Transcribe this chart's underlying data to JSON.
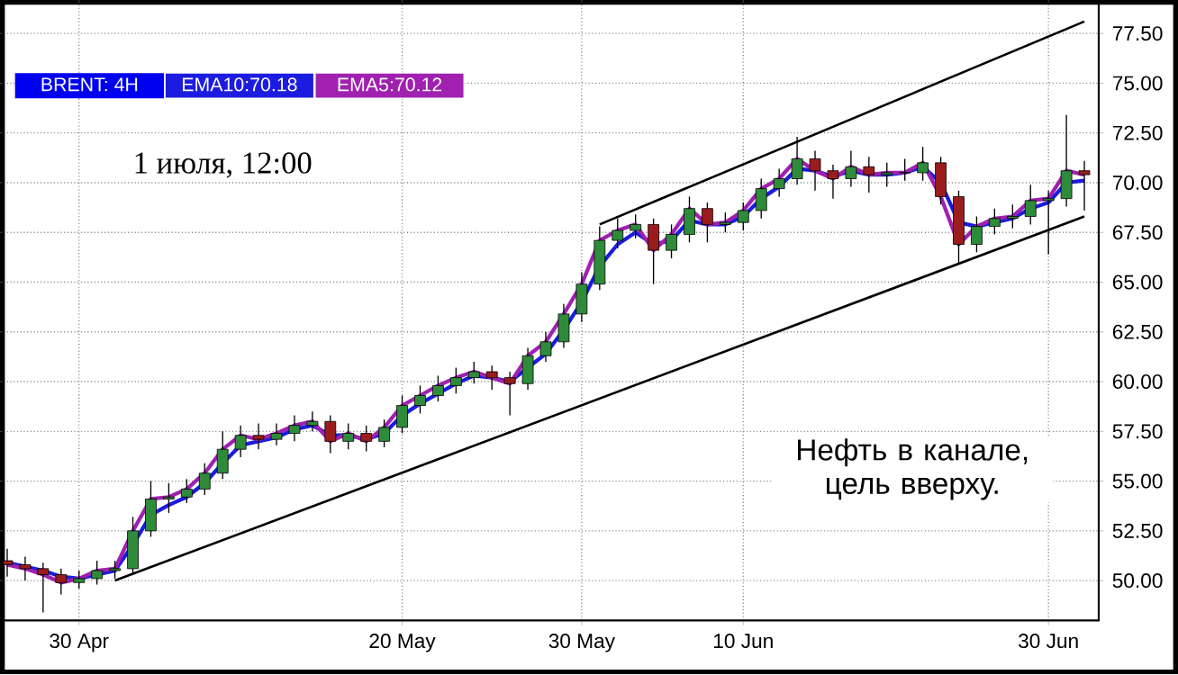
{
  "chart_data": {
    "type": "candlestick",
    "title": "BRENT: 4H",
    "categories": [
      null,
      null,
      null,
      null,
      "30 Apr",
      null,
      null,
      null,
      null,
      null,
      null,
      null,
      null,
      null,
      null,
      null,
      null,
      null,
      null,
      null,
      null,
      null,
      "20 May",
      null,
      null,
      null,
      null,
      null,
      null,
      null,
      null,
      null,
      "30 May",
      null,
      null,
      null,
      null,
      null,
      null,
      null,
      null,
      "10 Jun",
      null,
      null,
      null,
      null,
      null,
      null,
      null,
      null,
      null,
      null,
      null,
      null,
      null,
      null,
      null,
      null,
      "30 Jun",
      null,
      null
    ],
    "ohlc": [
      [
        51.0,
        51.6,
        50.2,
        50.8
      ],
      [
        50.8,
        51.2,
        50.0,
        50.6
      ],
      [
        50.6,
        50.9,
        48.4,
        50.3
      ],
      [
        50.3,
        50.6,
        49.3,
        49.9
      ],
      [
        49.9,
        50.5,
        49.6,
        50.1
      ],
      [
        50.1,
        51.0,
        49.8,
        50.5
      ],
      [
        50.5,
        51.0,
        50.1,
        50.6
      ],
      [
        50.6,
        53.2,
        50.3,
        52.5
      ],
      [
        52.5,
        55.0,
        52.2,
        54.1
      ],
      [
        54.1,
        54.9,
        53.4,
        54.2
      ],
      [
        54.2,
        55.1,
        53.9,
        54.6
      ],
      [
        54.6,
        55.9,
        54.3,
        55.4
      ],
      [
        55.4,
        57.5,
        55.1,
        56.6
      ],
      [
        56.6,
        57.8,
        56.2,
        57.3
      ],
      [
        57.3,
        57.9,
        56.6,
        57.1
      ],
      [
        57.1,
        57.9,
        56.8,
        57.4
      ],
      [
        57.4,
        58.3,
        57.0,
        57.8
      ],
      [
        57.8,
        58.5,
        57.5,
        58.0
      ],
      [
        58.0,
        58.3,
        56.4,
        57.0
      ],
      [
        57.0,
        57.9,
        56.6,
        57.4
      ],
      [
        57.4,
        57.8,
        56.5,
        57.0
      ],
      [
        57.0,
        58.1,
        56.7,
        57.7
      ],
      [
        57.7,
        59.3,
        57.4,
        58.8
      ],
      [
        58.8,
        59.8,
        58.4,
        59.3
      ],
      [
        59.3,
        60.3,
        59.0,
        59.8
      ],
      [
        59.8,
        60.7,
        59.4,
        60.2
      ],
      [
        60.2,
        61.0,
        59.9,
        60.5
      ],
      [
        60.5,
        60.8,
        59.6,
        60.2
      ],
      [
        60.2,
        60.5,
        58.3,
        59.9
      ],
      [
        59.9,
        61.7,
        59.6,
        61.3
      ],
      [
        61.3,
        62.5,
        61.0,
        62.0
      ],
      [
        62.0,
        63.9,
        61.7,
        63.4
      ],
      [
        63.4,
        65.5,
        63.0,
        64.9
      ],
      [
        64.9,
        67.8,
        64.6,
        67.1
      ],
      [
        67.1,
        68.2,
        66.7,
        67.6
      ],
      [
        67.6,
        68.4,
        67.2,
        67.9
      ],
      [
        67.9,
        68.2,
        64.9,
        66.6
      ],
      [
        66.6,
        67.9,
        66.2,
        67.4
      ],
      [
        67.4,
        69.3,
        67.0,
        68.7
      ],
      [
        68.7,
        69.0,
        67.0,
        67.9
      ],
      [
        67.9,
        68.5,
        67.5,
        68.0
      ],
      [
        68.0,
        69.0,
        67.6,
        68.6
      ],
      [
        68.6,
        70.2,
        68.2,
        69.7
      ],
      [
        69.7,
        70.7,
        69.3,
        70.2
      ],
      [
        70.2,
        72.3,
        69.9,
        71.2
      ],
      [
        71.2,
        71.6,
        69.6,
        70.6
      ],
      [
        70.6,
        70.9,
        69.2,
        70.2
      ],
      [
        70.2,
        71.6,
        69.8,
        70.8
      ],
      [
        70.8,
        71.3,
        69.5,
        70.4
      ],
      [
        70.4,
        71.0,
        69.8,
        70.5
      ],
      [
        70.5,
        71.2,
        70.1,
        70.5
      ],
      [
        70.5,
        71.8,
        70.1,
        71.0
      ],
      [
        71.0,
        71.3,
        68.9,
        69.3
      ],
      [
        69.3,
        69.6,
        65.9,
        66.9
      ],
      [
        66.9,
        68.3,
        66.5,
        67.8
      ],
      [
        67.8,
        68.7,
        67.4,
        68.2
      ],
      [
        68.2,
        68.9,
        67.7,
        68.3
      ],
      [
        68.3,
        69.9,
        67.9,
        69.1
      ],
      [
        69.1,
        69.6,
        66.4,
        69.2
      ],
      [
        69.2,
        73.4,
        68.8,
        70.6
      ],
      [
        70.6,
        71.1,
        68.6,
        70.4
      ]
    ],
    "series": [
      {
        "type": "line",
        "name": "EMA10:70.18",
        "color": "#1c1ce0",
        "values": [
          50.9,
          50.7,
          50.5,
          50.2,
          50.1,
          50.3,
          50.5,
          51.8,
          53.3,
          53.8,
          54.2,
          54.9,
          55.9,
          56.8,
          57.0,
          57.2,
          57.6,
          57.8,
          57.3,
          57.3,
          57.1,
          57.4,
          58.3,
          58.9,
          59.4,
          59.9,
          60.3,
          60.2,
          60.0,
          60.7,
          61.4,
          62.6,
          64.0,
          65.8,
          66.9,
          67.5,
          66.9,
          67.1,
          68.1,
          67.9,
          67.9,
          68.3,
          69.2,
          69.8,
          70.7,
          70.6,
          70.3,
          70.6,
          70.4,
          70.4,
          70.5,
          70.8,
          70.0,
          68.0,
          67.8,
          68.0,
          68.2,
          68.7,
          69.0,
          70.0,
          70.1
        ]
      },
      {
        "type": "line",
        "name": "EMA5:70.12",
        "color": "#a020b0",
        "values": [
          50.8,
          50.6,
          50.3,
          49.9,
          50.1,
          50.5,
          50.6,
          52.5,
          54.1,
          54.2,
          54.6,
          55.4,
          56.6,
          57.3,
          57.1,
          57.4,
          57.8,
          58.0,
          57.0,
          57.4,
          57.0,
          57.7,
          58.8,
          59.3,
          59.8,
          60.2,
          60.5,
          60.2,
          59.9,
          61.3,
          62.0,
          63.4,
          64.9,
          67.1,
          67.6,
          67.9,
          66.6,
          67.4,
          68.7,
          67.9,
          68.0,
          68.6,
          69.7,
          70.2,
          71.2,
          70.6,
          70.2,
          70.8,
          70.4,
          70.5,
          70.5,
          71.0,
          69.3,
          66.9,
          67.8,
          68.2,
          68.3,
          69.1,
          69.2,
          70.6,
          70.4
        ]
      },
      {
        "type": "line",
        "color": "#000000",
        "values": [
          null,
          null,
          null,
          null,
          null,
          null,
          null,
          null,
          null,
          null,
          null,
          null,
          null,
          null,
          null,
          null,
          null,
          null,
          null,
          null,
          null,
          null,
          null,
          null,
          null,
          null,
          null,
          null,
          null,
          null,
          null,
          null,
          null,
          67.9,
          null,
          null,
          null,
          null,
          null,
          null,
          null,
          null,
          null,
          null,
          null,
          null,
          null,
          null,
          null,
          null,
          null,
          null,
          null,
          null,
          null,
          null,
          null,
          null,
          null,
          null,
          78.1
        ]
      },
      {
        "type": "line",
        "color": "#000000",
        "values": [
          null,
          null,
          null,
          null,
          null,
          null,
          50.0,
          null,
          null,
          null,
          null,
          null,
          null,
          null,
          null,
          null,
          null,
          null,
          null,
          null,
          null,
          null,
          null,
          null,
          null,
          null,
          null,
          null,
          null,
          null,
          null,
          null,
          null,
          null,
          null,
          null,
          null,
          null,
          null,
          null,
          null,
          null,
          null,
          null,
          null,
          null,
          null,
          null,
          null,
          null,
          null,
          null,
          null,
          null,
          null,
          null,
          null,
          null,
          null,
          null,
          68.3
        ]
      }
    ],
    "ylim": [
      48,
      79
    ],
    "yticks": [
      {
        "value": 50,
        "label": "50.00"
      },
      {
        "value": 52.5,
        "label": "52.50"
      },
      {
        "value": 55,
        "label": "55.00"
      },
      {
        "value": 57.5,
        "label": "57.50"
      },
      {
        "value": 60,
        "label": "60.00"
      },
      {
        "value": 62.5,
        "label": "62.50"
      },
      {
        "value": 65,
        "label": "65.00"
      },
      {
        "value": 67.5,
        "label": "67.50"
      },
      {
        "value": 70,
        "label": "70.00"
      },
      {
        "value": 72.5,
        "label": "72.50"
      },
      {
        "value": 75,
        "label": "75.00"
      },
      {
        "value": 77.5,
        "label": "77.50"
      }
    ],
    "grid": true,
    "legend": "top left",
    "annotations": [
      "1 июля, 12:00",
      "Нефть в канале, цель вверху."
    ]
  }
}
